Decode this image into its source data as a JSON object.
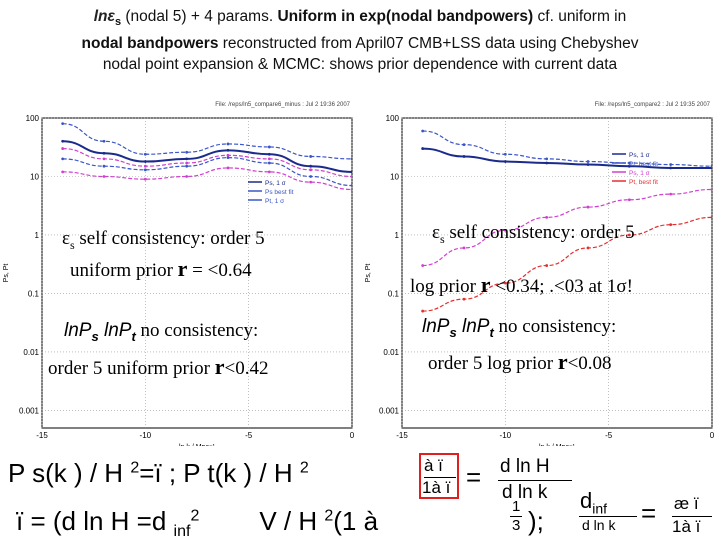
{
  "title": {
    "sym": "lnε",
    "sub": "s",
    "line1_rest_plain": " (nodal 5) + 4 params. ",
    "line1_bold": "Uniform in exp(nodal bandpowers)",
    "line1_tail": " cf. uniform in",
    "line2_bold": "nodal bandpowers",
    "line2_tail": " reconstructed from April07 CMB+LSS data using Chebyshev",
    "line3": "nodal point expansion & MCMC: shows prior dependence with current data"
  },
  "left_plot": {
    "file_label": "File: /reps/ln5_compare6_minus : Jul 2 19:36 2007",
    "ylabel": "Ps, Pt",
    "xlabel": "ln k / Mpc⁻¹",
    "legend": [
      "Ps, 1 σ",
      "Ps best fit",
      "Pt, 1 σ"
    ],
    "overlay_lines": {
      "l1_sym": "ε",
      "l1_sub": "s",
      "l1_text": " self consistency: order 5",
      "l2_pre": "uniform prior ",
      "l2_r": "r",
      "l2_post": " = <0.64",
      "l3_sym1": "lnP",
      "l3_sub1": "s",
      "l3_sym2": " lnP",
      "l3_sub2": "t",
      "l3_text": " no consistency:",
      "l4_pre": "order 5 uniform prior ",
      "l4_r": "r",
      "l4_post": "<0.42"
    }
  },
  "right_plot": {
    "file_label": "File: /reps/ln5_compare2 : Jul 2 19:35 2007",
    "ylabel": "Ps, Pt",
    "xlabel": "ln k / Mpc⁻¹",
    "legend": [
      "Ps, 1 σ",
      "Pt, best fit",
      "Ps, 1 σ",
      "Pt, best fit"
    ],
    "overlay_lines": {
      "l1_sym": "ε",
      "l1_sub": "s",
      "l1_text": " self consistency: order 5",
      "l2_pre": "log prior ",
      "l2_r": "r",
      "l2_post": " <0.34; .<03 at 1σ!",
      "l3_sym1": "lnP",
      "l3_sub1": "s",
      "l3_sym2": " lnP",
      "l3_sub2": "t",
      "l3_text": " no consistency:",
      "l4_pre": "order 5  log prior ",
      "l4_r": "r",
      "l4_post": "<0.08"
    }
  },
  "formulas": {
    "f1": "P s(k ) /   H  ",
    "f1_sup": "2",
    "f1_b": "=ï ; P t(k ) /   H  ",
    "f1_sup2": "2",
    "box_num": "à ï",
    "box_den": "1à ï",
    "eq": "=",
    "frac_num": "d ln H",
    "frac_den": "d ln k",
    "f2": "ï  =  (d ln H =d  ",
    "f2_sub": "inf",
    "f2_sup": "2",
    "f2_b": "V  /   H  ",
    "f2_sup2": "2",
    "f2_c": "(1 à  ",
    "f2_frac_num": "1",
    "f2_frac_den": "3",
    "f2_d": ");",
    "d_num": "d",
    "d_num_sub": "inf",
    "d_den": "d ln k",
    "eq2": "=",
    "r_num": "æ ï",
    "r_den": "1à ï"
  },
  "chart_data": [
    {
      "type": "line",
      "title": "",
      "xlabel": "ln k / Mpc⁻¹",
      "ylabel": "Ps, Pt",
      "xlim": [
        -15,
        0
      ],
      "ylim_log10": [
        -3.3,
        2
      ],
      "yscale": "log",
      "x_ticks": [
        -15,
        -10,
        -5,
        0
      ],
      "y_ticks": [
        0.001,
        0.01,
        0.1,
        1,
        10,
        100
      ],
      "y_tick_labels": [
        "0.001",
        "0.01",
        "0.1",
        "1",
        "10",
        "100"
      ],
      "grid": true,
      "legend_position": "center-right",
      "legend": [
        "Ps, 1 σ",
        "Ps best fit",
        "Pt, 1 σ"
      ],
      "series": [
        {
          "name": "Ps best fit",
          "color": "#1a2b8c",
          "x": [
            -14,
            -12,
            -10,
            -8,
            -6,
            -4,
            -2,
            0
          ],
          "y": [
            40,
            25,
            18,
            20,
            28,
            24,
            15,
            12
          ]
        },
        {
          "name": "Ps, 1 σ",
          "color": "#3a55c8",
          "x": [
            -14,
            -12,
            -10,
            -8,
            -6,
            -4,
            -2,
            0
          ],
          "y": [
            80,
            40,
            24,
            26,
            36,
            32,
            22,
            20
          ]
        },
        {
          "name": "Ps, 1 σ",
          "color": "#3a55c8",
          "x": [
            -14,
            -12,
            -10,
            -8,
            -6,
            -4,
            -2,
            0
          ],
          "y": [
            20,
            15,
            13,
            15,
            21,
            17,
            10,
            7
          ]
        },
        {
          "name": "Pt, 1 σ",
          "color": "#d040d0",
          "x": [
            -14,
            -12,
            -10,
            -8,
            -6,
            -4,
            -2,
            0
          ],
          "y": [
            30,
            20,
            15,
            17,
            23,
            20,
            13,
            10
          ]
        },
        {
          "name": "Pt, 1 σ",
          "color": "#d040d0",
          "x": [
            -14,
            -12,
            -10,
            -8,
            -6,
            -4,
            -2,
            0
          ],
          "y": [
            12,
            10,
            9,
            10,
            14,
            12,
            8,
            6
          ]
        }
      ]
    },
    {
      "type": "line",
      "title": "",
      "xlabel": "ln k / Mpc⁻¹",
      "ylabel": "Ps, Pt",
      "xlim": [
        -15,
        0
      ],
      "ylim_log10": [
        -3.3,
        2
      ],
      "yscale": "log",
      "x_ticks": [
        -15,
        -10,
        -5,
        0
      ],
      "y_ticks": [
        0.001,
        0.01,
        0.1,
        1,
        10,
        100
      ],
      "y_tick_labels": [
        "0.001",
        "0.01",
        "0.1",
        "1",
        "10",
        "100"
      ],
      "grid": true,
      "legend_position": "top-right",
      "legend": [
        "Ps, 1 σ",
        "Pt, best fit",
        "Ps, 1 σ",
        "Pt, best fit"
      ],
      "series": [
        {
          "name": "Ps, 1 σ",
          "color": "#1a2b8c",
          "x": [
            -14,
            -12,
            -10,
            -8,
            -6,
            -4,
            -2,
            0
          ],
          "y": [
            30,
            22,
            18,
            17,
            16,
            15,
            14,
            14
          ]
        },
        {
          "name": "Pt, best fit",
          "color": "#3a55c8",
          "x": [
            -14,
            -12,
            -10,
            -8,
            -6,
            -4,
            -2,
            0
          ],
          "y": [
            60,
            35,
            24,
            20,
            18,
            17,
            16,
            15
          ]
        },
        {
          "name": "Ps, 1 σ",
          "color": "#d040d0",
          "x": [
            -14,
            -12,
            -10,
            -8,
            -6,
            -4,
            -2,
            0
          ],
          "y": [
            0.3,
            0.6,
            1.2,
            2.0,
            3.0,
            4.0,
            5.0,
            6.0
          ]
        },
        {
          "name": "Pt, best fit",
          "color": "#e23030",
          "x": [
            -14,
            -12,
            -10,
            -8,
            -6,
            -4,
            -2,
            0
          ],
          "y": [
            0.05,
            0.08,
            0.15,
            0.3,
            0.6,
            1.0,
            1.5,
            2.0
          ]
        }
      ]
    }
  ]
}
